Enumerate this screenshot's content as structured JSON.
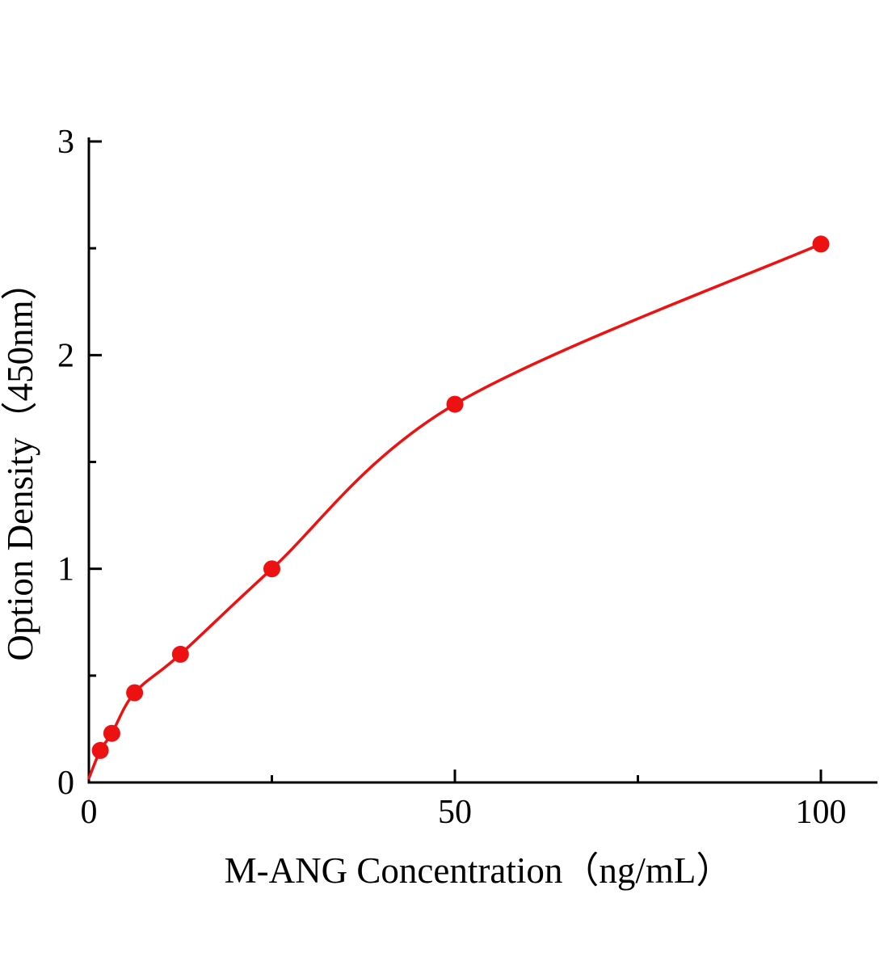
{
  "chart_data": {
    "type": "scatter",
    "title": "",
    "xlabel": "M-ANG Concentration（ng/mL）",
    "ylabel": "Option Density（450nm）",
    "x": [
      1.56,
      3.13,
      6.25,
      12.5,
      25,
      50,
      100
    ],
    "y": [
      0.15,
      0.23,
      0.42,
      0.6,
      1.0,
      1.77,
      2.52
    ],
    "curve_start": [
      0,
      0.02
    ],
    "xlim": [
      0,
      107.5
    ],
    "ylim": [
      0,
      3.02
    ],
    "x_major_ticks": [
      0,
      50,
      100
    ],
    "x_minor_ticks": [
      25,
      75
    ],
    "y_major_ticks": [
      0,
      1,
      2,
      3
    ],
    "y_minor_ticks": [
      0.5,
      1.5,
      2.5
    ],
    "line_color": "#ee1111",
    "marker_color": "#ee1111",
    "marker_shape": "circle",
    "axis_color": "#000000",
    "grid": false,
    "legend": "none"
  }
}
